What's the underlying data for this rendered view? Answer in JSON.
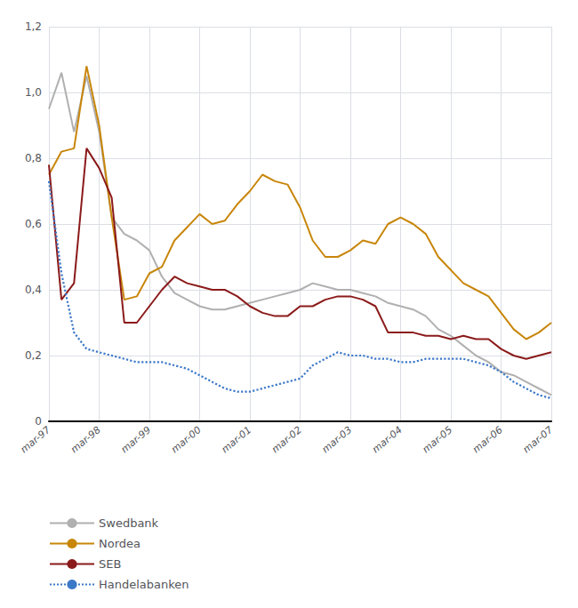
{
  "chart_data": {
    "type": "line",
    "categories": [
      "mar-97",
      null,
      null,
      null,
      "mar-98",
      null,
      null,
      null,
      "mar-99",
      null,
      null,
      null,
      "mar-00",
      null,
      null,
      null,
      "mar-01",
      null,
      null,
      null,
      "mar-02",
      null,
      null,
      null,
      "mar-03",
      null,
      null,
      null,
      "mar-04",
      null,
      null,
      null,
      "mar-05",
      null,
      null,
      null,
      "mar-06",
      null,
      null,
      null,
      "mar-07"
    ],
    "ylim": [
      0,
      1.2
    ],
    "yticks": [
      0,
      {
        "value": 0.2,
        "label": "0,2"
      },
      {
        "value": 0.4,
        "label": "0,4"
      },
      {
        "value": 0.6,
        "label": "0,6"
      },
      {
        "value": 0.8,
        "label": "0,8"
      },
      {
        "value": 1.0,
        "label": "1,0"
      },
      {
        "value": 1.2,
        "label": "1,2"
      }
    ],
    "grid": true,
    "legend": "bottom",
    "series": [
      {
        "name": "Swedbank",
        "color": "#b0b0b0",
        "line_style": "solid",
        "values": [
          0.95,
          1.06,
          0.88,
          1.05,
          0.88,
          0.62,
          0.57,
          0.55,
          0.52,
          0.44,
          0.39,
          0.37,
          0.35,
          0.34,
          0.34,
          0.35,
          0.36,
          0.37,
          0.38,
          0.39,
          0.4,
          0.42,
          0.41,
          0.4,
          0.4,
          0.39,
          0.38,
          0.36,
          0.35,
          0.34,
          0.32,
          0.28,
          0.26,
          0.23,
          0.2,
          0.18,
          0.15,
          0.14,
          0.12,
          0.1,
          0.08
        ]
      },
      {
        "name": "Nordea",
        "color": "#c8860a",
        "line_style": "solid",
        "values": [
          0.75,
          0.82,
          0.83,
          1.08,
          0.9,
          0.62,
          0.37,
          0.38,
          0.45,
          0.47,
          0.55,
          0.59,
          0.63,
          0.6,
          0.61,
          0.66,
          0.7,
          0.75,
          0.73,
          0.72,
          0.65,
          0.55,
          0.5,
          0.5,
          0.52,
          0.55,
          0.54,
          0.6,
          0.62,
          0.6,
          0.57,
          0.5,
          0.46,
          0.42,
          0.4,
          0.38,
          0.33,
          0.28,
          0.25,
          0.27,
          0.3
        ]
      },
      {
        "name": "SEB",
        "color": "#8b1a1a",
        "line_style": "solid",
        "values": [
          0.78,
          0.37,
          0.42,
          0.83,
          0.77,
          0.68,
          0.3,
          0.3,
          0.35,
          0.4,
          0.44,
          0.42,
          0.41,
          0.4,
          0.4,
          0.38,
          0.35,
          0.33,
          0.32,
          0.32,
          0.35,
          0.35,
          0.37,
          0.38,
          0.38,
          0.37,
          0.35,
          0.27,
          0.27,
          0.27,
          0.26,
          0.26,
          0.25,
          0.26,
          0.25,
          0.25,
          0.22,
          0.2,
          0.19,
          0.2,
          0.21
        ]
      },
      {
        "name": "Handelabanken",
        "color": "#3c78c8",
        "line_style": "dotted",
        "values": [
          0.73,
          0.45,
          0.27,
          0.22,
          0.21,
          0.2,
          0.19,
          0.18,
          0.18,
          0.18,
          0.17,
          0.16,
          0.14,
          0.12,
          0.1,
          0.09,
          0.09,
          0.1,
          0.11,
          0.12,
          0.13,
          0.17,
          0.19,
          0.21,
          0.2,
          0.2,
          0.19,
          0.19,
          0.18,
          0.18,
          0.19,
          0.19,
          0.19,
          0.19,
          0.18,
          0.17,
          0.15,
          0.12,
          0.1,
          0.08,
          0.07
        ]
      }
    ]
  }
}
